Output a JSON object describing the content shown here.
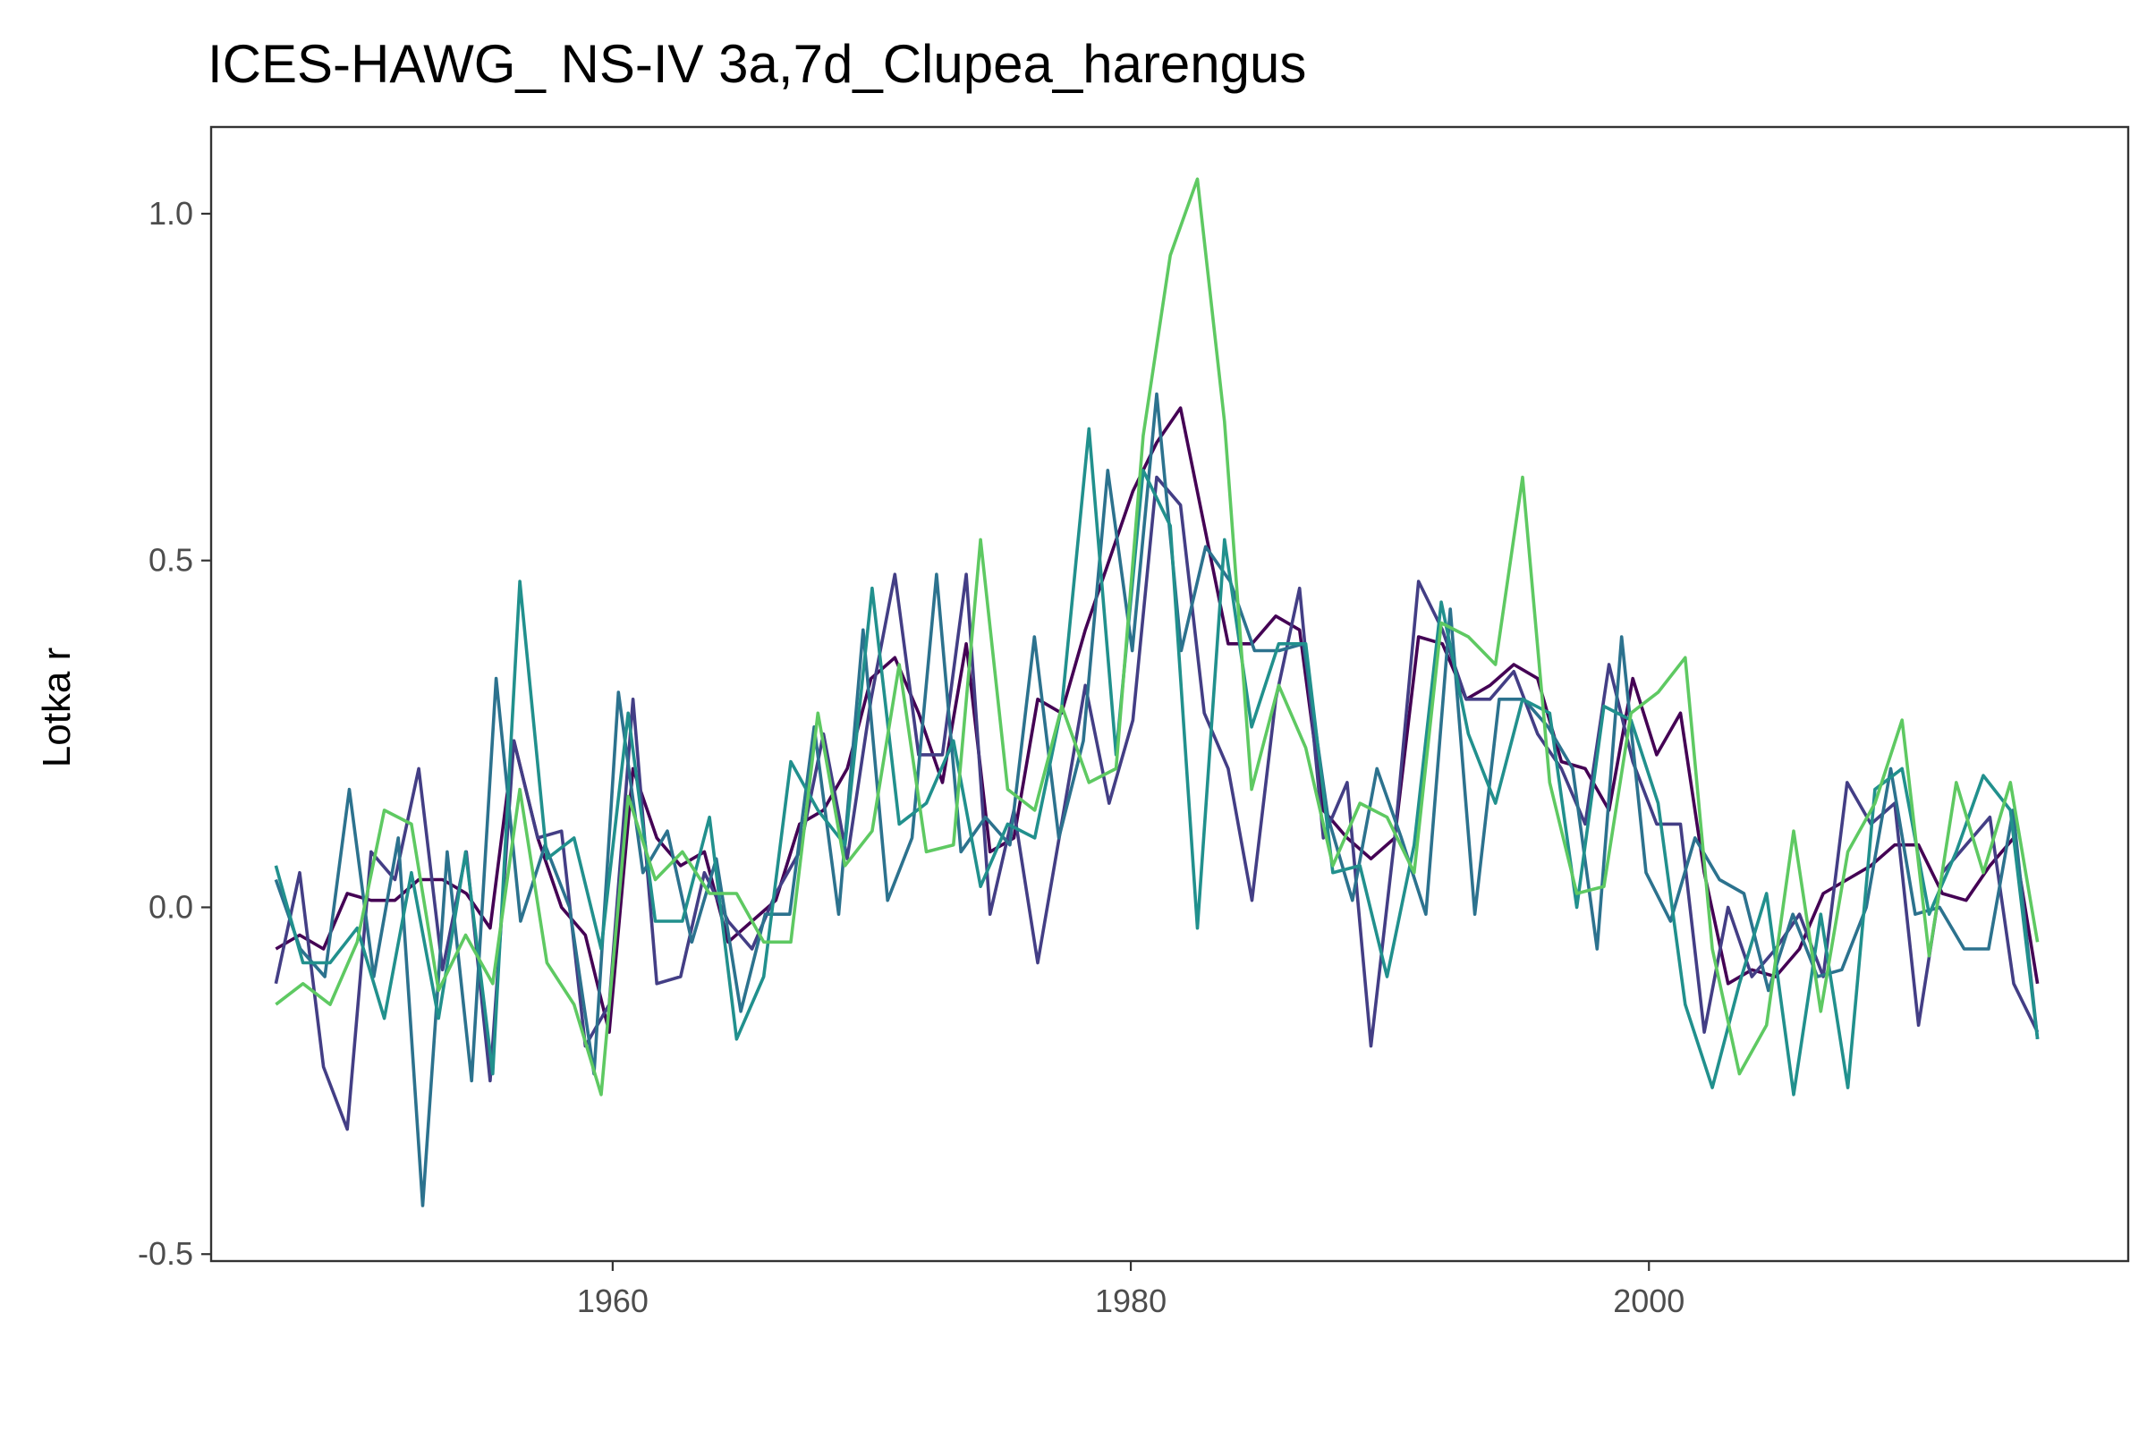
{
  "chart_data": {
    "type": "line",
    "title": "ICES-HAWG_ NS-IV 3a,7d_Clupea_harengus",
    "xlabel": "",
    "ylabel": "Lotka r",
    "xlim": [
      1944.5,
      2018.5
    ],
    "ylim": [
      -0.51,
      1.125
    ],
    "x_ticks": [
      1960,
      1980,
      2000
    ],
    "x_tick_labels": [
      "1960",
      "1980",
      "2000"
    ],
    "y_ticks": [
      -0.5,
      0.0,
      0.5,
      1.0
    ],
    "y_tick_labels": [
      "-0.5",
      "0.0",
      "0.5",
      "1.0"
    ],
    "grid": false,
    "legend": "none",
    "x_start": 1947,
    "x_end": 2015,
    "series": [
      {
        "color": "#440154",
        "values": [
          -0.06,
          -0.04,
          -0.06,
          0.02,
          0.01,
          0.01,
          0.04,
          0.04,
          0.02,
          -0.03,
          0.24,
          0.1,
          0.0,
          -0.04,
          -0.18,
          0.2,
          0.1,
          0.06,
          0.08,
          -0.05,
          -0.02,
          0.01,
          0.12,
          0.14,
          0.2,
          0.33,
          0.36,
          0.28,
          0.18,
          0.38,
          0.08,
          0.1,
          0.3,
          0.28,
          0.4,
          0.5,
          0.6,
          0.67,
          0.72,
          0.55,
          0.38,
          0.38,
          0.42,
          0.4,
          0.14,
          0.1,
          0.07,
          0.1,
          0.39,
          0.38,
          0.3,
          0.32,
          0.35,
          0.33,
          0.21,
          0.2,
          0.14,
          0.33,
          0.22,
          0.28,
          0.05,
          -0.11,
          -0.09,
          -0.1,
          -0.06,
          0.02,
          0.04,
          0.06,
          0.09,
          0.09,
          0.02,
          0.01,
          0.06,
          0.1,
          -0.11
        ]
      },
      {
        "color": "#433e85",
        "values": [
          -0.11,
          0.05,
          -0.23,
          -0.32,
          0.08,
          0.04,
          0.2,
          -0.09,
          0.08,
          -0.25,
          0.24,
          0.1,
          0.11,
          -0.2,
          -0.14,
          0.3,
          -0.11,
          -0.1,
          0.05,
          -0.02,
          -0.06,
          0.02,
          0.08,
          0.25,
          0.07,
          0.3,
          0.48,
          0.22,
          0.22,
          0.48,
          -0.01,
          0.14,
          -0.08,
          0.12,
          0.32,
          0.15,
          0.27,
          0.62,
          0.58,
          0.28,
          0.2,
          0.01,
          0.3,
          0.46,
          0.1,
          0.18,
          -0.2,
          0.1,
          0.47,
          0.4,
          0.3,
          0.3,
          0.34,
          0.25,
          0.2,
          0.12,
          0.35,
          0.21,
          0.12,
          0.12,
          -0.18,
          0.0,
          -0.1,
          -0.06,
          -0.01,
          -0.1,
          0.18,
          0.12,
          0.15,
          -0.17,
          0.05,
          0.09,
          0.13,
          -0.11,
          -0.18
        ]
      },
      {
        "color": "#2c728e",
        "values": [
          0.04,
          -0.06,
          -0.1,
          0.17,
          -0.1,
          0.1,
          -0.43,
          0.08,
          -0.25,
          0.33,
          -0.02,
          0.09,
          0.0,
          -0.24,
          0.31,
          0.05,
          0.11,
          -0.05,
          0.07,
          -0.15,
          -0.01,
          -0.01,
          0.26,
          -0.01,
          0.4,
          0.01,
          0.1,
          0.48,
          0.08,
          0.13,
          0.09,
          0.39,
          0.1,
          0.24,
          0.63,
          0.37,
          0.74,
          0.37,
          0.52,
          0.47,
          0.37,
          0.37,
          0.38,
          0.13,
          0.01,
          0.2,
          0.1,
          -0.01,
          0.43,
          -0.01,
          0.3,
          0.3,
          0.26,
          0.2,
          -0.06,
          0.39,
          0.05,
          -0.02,
          0.1,
          0.04,
          0.02,
          -0.12,
          -0.01,
          -0.1,
          -0.09,
          0.0,
          0.2,
          -0.01,
          0.0,
          -0.06,
          -0.06,
          0.14,
          -0.19
        ]
      },
      {
        "color": "#21908d",
        "values": [
          0.06,
          -0.08,
          -0.08,
          -0.03,
          -0.16,
          0.05,
          -0.16,
          0.08,
          -0.24,
          0.47,
          0.07,
          0.1,
          -0.06,
          0.28,
          -0.02,
          -0.02,
          0.13,
          -0.19,
          -0.1,
          0.21,
          0.14,
          0.09,
          0.46,
          0.12,
          0.15,
          0.24,
          0.03,
          0.12,
          0.1,
          0.29,
          0.69,
          0.22,
          0.63,
          0.55,
          -0.03,
          0.53,
          0.26,
          0.38,
          0.38,
          0.05,
          0.06,
          -0.1,
          0.09,
          0.44,
          0.25,
          0.15,
          0.3,
          0.28,
          0.0,
          0.29,
          0.27,
          0.15,
          -0.14,
          -0.26,
          -0.11,
          0.02,
          -0.27,
          -0.01,
          -0.26,
          0.17,
          0.2,
          -0.01,
          0.08,
          0.19,
          0.14,
          -0.19
        ]
      },
      {
        "color": "#5ec962",
        "values": [
          -0.14,
          -0.11,
          -0.14,
          -0.05,
          0.14,
          0.12,
          -0.12,
          -0.04,
          -0.11,
          0.17,
          -0.08,
          -0.14,
          -0.27,
          0.16,
          0.04,
          0.08,
          0.02,
          0.02,
          -0.05,
          -0.05,
          0.28,
          0.06,
          0.11,
          0.35,
          0.08,
          0.09,
          0.53,
          0.17,
          0.14,
          0.29,
          0.18,
          0.2,
          0.68,
          0.94,
          1.05,
          0.7,
          0.17,
          0.32,
          0.23,
          0.06,
          0.15,
          0.13,
          0.05,
          0.41,
          0.39,
          0.35,
          0.62,
          0.18,
          0.02,
          0.03,
          0.28,
          0.31,
          0.36,
          -0.06,
          -0.24,
          -0.17,
          0.11,
          -0.15,
          0.08,
          0.15,
          0.27,
          -0.07,
          0.18,
          0.05,
          0.18,
          -0.05
        ]
      }
    ]
  }
}
